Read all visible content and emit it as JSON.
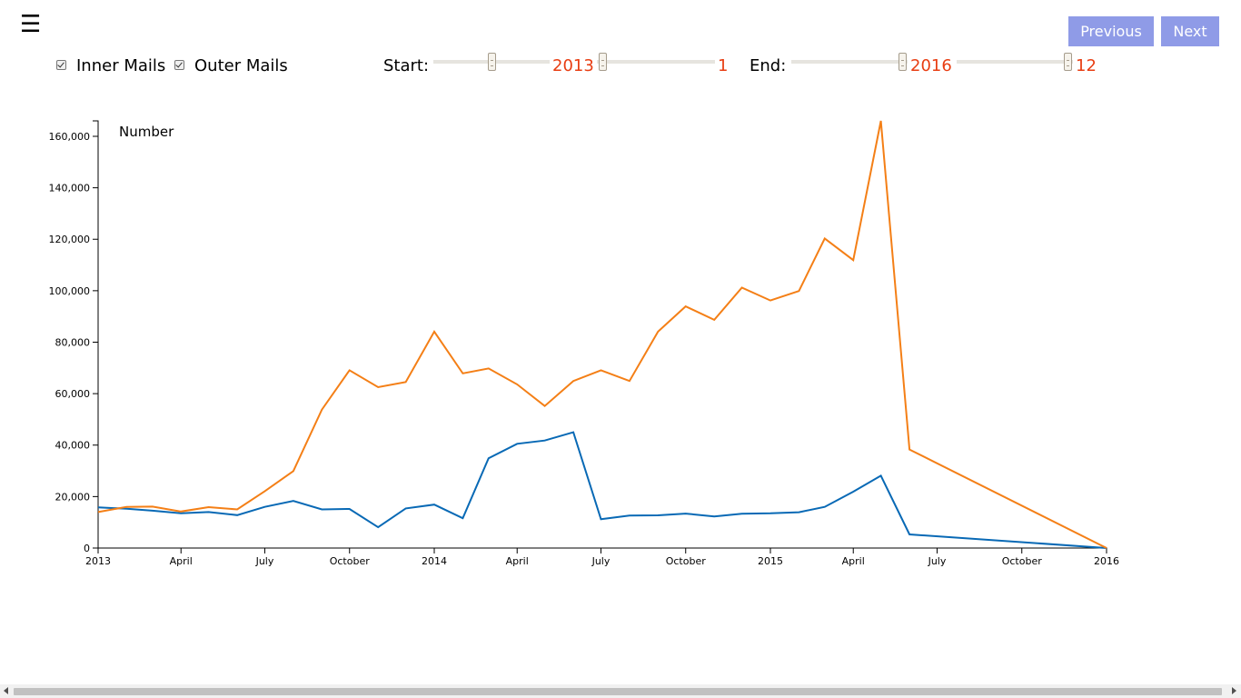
{
  "menu": {
    "icon": "hamburger-menu-icon",
    "glyph": "☰"
  },
  "nav": {
    "previous_label": "Previous",
    "next_label": "Next"
  },
  "filters": {
    "inner_mails": {
      "label": "Inner Mails",
      "checked": true
    },
    "outer_mails": {
      "label": "Outer Mails",
      "checked": true
    }
  },
  "range": {
    "start_label": "Start:",
    "start_year": "2013",
    "start_month": "1",
    "end_label": "End:",
    "end_year": "2016",
    "end_month": "12"
  },
  "colors": {
    "inner_mails": "#0869b5",
    "outer_mails": "#f47f16",
    "slider_value": "#e83d12",
    "button_bg": "#8f9be7"
  },
  "chart_data": {
    "type": "line",
    "ylabel": "Number",
    "ylim": [
      0,
      166000
    ],
    "yticks": [
      0,
      20000,
      40000,
      60000,
      80000,
      100000,
      120000,
      140000,
      160000
    ],
    "ytick_labels": [
      "0",
      "20,000",
      "40,000",
      "60,000",
      "80,000",
      "100,000",
      "120,000",
      "140,000",
      "160,000"
    ],
    "xlim": [
      "2013-01-01",
      "2016-01-01"
    ],
    "xticks": [
      "2013-01-01",
      "2013-04-01",
      "2013-07-01",
      "2013-10-01",
      "2014-01-01",
      "2014-04-01",
      "2014-07-01",
      "2014-10-01",
      "2015-01-01",
      "2015-04-01",
      "2015-07-01",
      "2015-10-01",
      "2016-01-01"
    ],
    "xtick_labels": [
      "2013",
      "April",
      "July",
      "October",
      "2014",
      "April",
      "July",
      "October",
      "2015",
      "April",
      "July",
      "October",
      "2016"
    ],
    "grid": false,
    "x": [
      "2013-01-01",
      "2013-02-01",
      "2013-03-01",
      "2013-04-01",
      "2013-05-01",
      "2013-06-01",
      "2013-07-01",
      "2013-08-01",
      "2013-09-01",
      "2013-10-01",
      "2013-11-01",
      "2013-12-01",
      "2014-01-01",
      "2014-02-01",
      "2014-03-01",
      "2014-04-01",
      "2014-05-01",
      "2014-06-01",
      "2014-07-01",
      "2014-08-01",
      "2014-09-01",
      "2014-10-01",
      "2014-11-01",
      "2014-12-01",
      "2015-01-01",
      "2015-02-01",
      "2015-03-01",
      "2015-04-01",
      "2015-05-01",
      "2015-06-01",
      "2016-01-01"
    ],
    "series": [
      {
        "key": "inner_mails",
        "values": [
          15800,
          15300,
          14500,
          13500,
          14000,
          12800,
          16000,
          18300,
          15000,
          15200,
          8100,
          15400,
          16900,
          11600,
          34900,
          40500,
          41800,
          45000,
          11200,
          12600,
          12700,
          13400,
          12300,
          13300,
          13500,
          13900,
          16000,
          21900,
          28100,
          5300,
          0
        ]
      },
      {
        "key": "outer_mails",
        "values": [
          14000,
          16000,
          16100,
          14200,
          15900,
          15000,
          22100,
          29900,
          53800,
          69100,
          62500,
          64500,
          84100,
          67900,
          69800,
          63600,
          55200,
          64900,
          69100,
          64900,
          84100,
          93900,
          88700,
          101200,
          96200,
          99900,
          120300,
          111900,
          166000,
          38300,
          0
        ]
      }
    ]
  }
}
